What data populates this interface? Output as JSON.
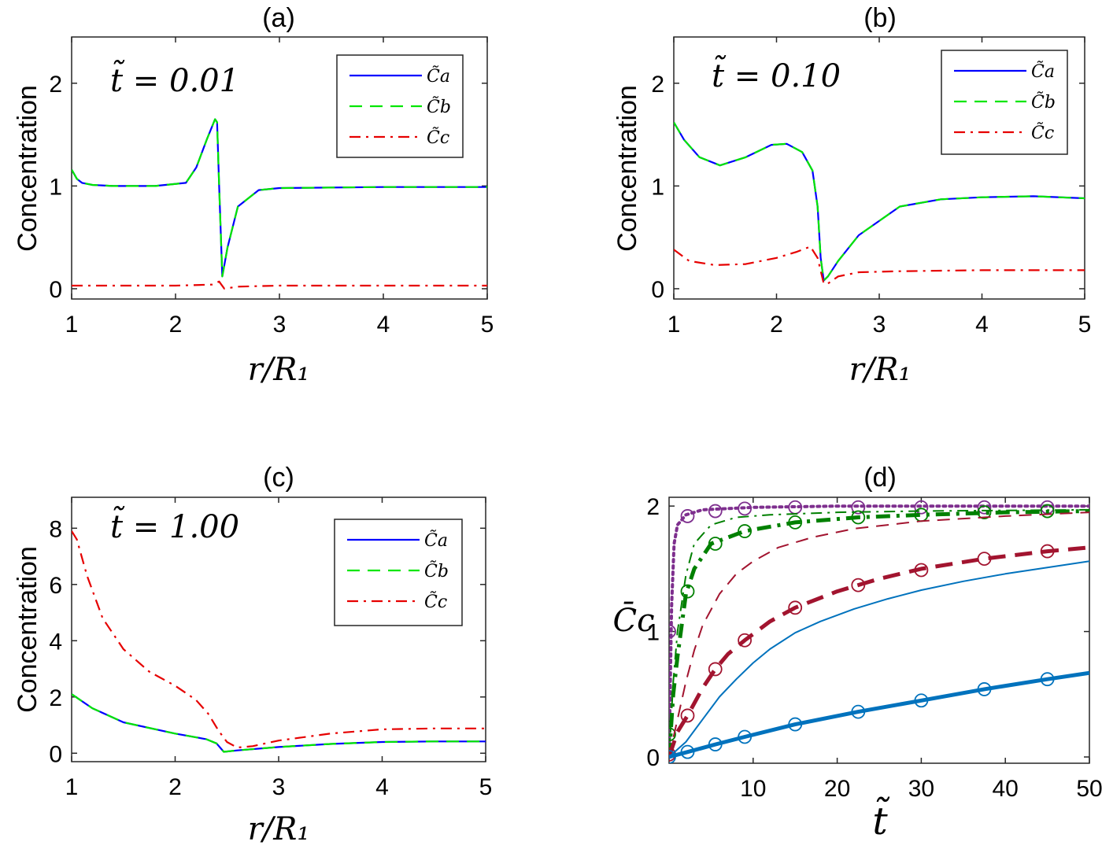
{
  "chart_data": [
    {
      "id": "a",
      "type": "line",
      "title": "(a)",
      "annotation": "t̃ = 0.01",
      "xlabel": "r/R₁",
      "ylabel": "Concentration",
      "xlim": [
        1,
        5
      ],
      "ylim": [
        -0.1,
        2.45
      ],
      "xticks": [
        1,
        2,
        3,
        4,
        5
      ],
      "yticks": [
        0,
        1,
        2
      ],
      "legend_position": "top-right",
      "series": [
        {
          "name": "C̃a",
          "style": "solid",
          "color": "#0000ff",
          "x": [
            1.0,
            1.05,
            1.1,
            1.2,
            1.4,
            1.8,
            2.1,
            2.2,
            2.3,
            2.38,
            2.4,
            2.42,
            2.45,
            2.5,
            2.6,
            2.8,
            3.0,
            4.0,
            5.0
          ],
          "y": [
            1.16,
            1.07,
            1.03,
            1.01,
            1.0,
            1.0,
            1.03,
            1.18,
            1.45,
            1.65,
            1.62,
            1.0,
            0.12,
            0.4,
            0.8,
            0.96,
            0.98,
            0.99,
            0.99
          ]
        },
        {
          "name": "C̃b",
          "style": "dashed",
          "color": "#00e600",
          "x": [
            1.0,
            1.05,
            1.1,
            1.2,
            1.4,
            1.8,
            2.1,
            2.2,
            2.3,
            2.38,
            2.4,
            2.42,
            2.45,
            2.5,
            2.6,
            2.8,
            3.0,
            4.0,
            5.0
          ],
          "y": [
            1.16,
            1.07,
            1.03,
            1.01,
            1.0,
            1.0,
            1.03,
            1.18,
            1.45,
            1.65,
            1.62,
            1.0,
            0.12,
            0.4,
            0.8,
            0.96,
            0.98,
            0.99,
            0.99
          ]
        },
        {
          "name": "C̃c",
          "style": "dashdot",
          "color": "#e60000",
          "x": [
            1.0,
            2.0,
            2.35,
            2.42,
            2.47,
            2.6,
            3.0,
            5.0
          ],
          "y": [
            0.03,
            0.03,
            0.04,
            0.07,
            0.0,
            0.02,
            0.03,
            0.03
          ]
        }
      ]
    },
    {
      "id": "b",
      "type": "line",
      "title": "(b)",
      "annotation": "t̃ = 0.10",
      "xlabel": "r/R₁",
      "ylabel": "Concentration",
      "xlim": [
        1,
        5
      ],
      "ylim": [
        -0.1,
        2.45
      ],
      "xticks": [
        1,
        2,
        3,
        4,
        5
      ],
      "yticks": [
        0,
        1,
        2
      ],
      "legend_position": "top-right",
      "series": [
        {
          "name": "C̃a",
          "style": "solid",
          "color": "#0000ff",
          "x": [
            1.0,
            1.1,
            1.25,
            1.45,
            1.7,
            1.95,
            2.1,
            2.25,
            2.35,
            2.4,
            2.43,
            2.46,
            2.5,
            2.6,
            2.8,
            3.2,
            3.6,
            4.0,
            4.5,
            5.0
          ],
          "y": [
            1.62,
            1.45,
            1.28,
            1.2,
            1.28,
            1.4,
            1.41,
            1.33,
            1.15,
            0.8,
            0.3,
            0.08,
            0.12,
            0.27,
            0.52,
            0.8,
            0.87,
            0.89,
            0.9,
            0.88
          ]
        },
        {
          "name": "C̃b",
          "style": "dashed",
          "color": "#00e600",
          "x": [
            1.0,
            1.1,
            1.25,
            1.45,
            1.7,
            1.95,
            2.1,
            2.25,
            2.35,
            2.4,
            2.43,
            2.46,
            2.5,
            2.6,
            2.8,
            3.2,
            3.6,
            4.0,
            4.5,
            5.0
          ],
          "y": [
            1.62,
            1.45,
            1.28,
            1.2,
            1.28,
            1.4,
            1.41,
            1.33,
            1.15,
            0.8,
            0.3,
            0.08,
            0.12,
            0.27,
            0.52,
            0.8,
            0.87,
            0.89,
            0.9,
            0.88
          ]
        },
        {
          "name": "C̃c",
          "style": "dashdot",
          "color": "#e60000",
          "x": [
            1.0,
            1.15,
            1.4,
            1.7,
            2.0,
            2.2,
            2.33,
            2.4,
            2.46,
            2.5,
            2.6,
            2.8,
            3.2,
            4.0,
            5.0
          ],
          "y": [
            0.38,
            0.27,
            0.23,
            0.24,
            0.3,
            0.36,
            0.41,
            0.3,
            0.05,
            0.05,
            0.12,
            0.16,
            0.17,
            0.18,
            0.18
          ]
        }
      ]
    },
    {
      "id": "c",
      "type": "line",
      "title": "(c)",
      "annotation": "t̃ = 1.00",
      "xlabel": "r/R₁",
      "ylabel": "Concentration",
      "xlim": [
        1,
        5
      ],
      "ylim": [
        -0.3,
        9.1
      ],
      "xticks": [
        1,
        2,
        3,
        4,
        5
      ],
      "yticks": [
        0,
        2,
        4,
        6,
        8
      ],
      "legend_position": "top-right",
      "series": [
        {
          "name": "C̃a",
          "style": "solid",
          "color": "#0000ff",
          "x": [
            1.0,
            1.2,
            1.5,
            2.0,
            2.3,
            2.4,
            2.47,
            2.6,
            3.0,
            3.5,
            4.0,
            4.5,
            5.0
          ],
          "y": [
            2.1,
            1.6,
            1.1,
            0.7,
            0.5,
            0.35,
            0.05,
            0.1,
            0.22,
            0.33,
            0.4,
            0.42,
            0.42
          ]
        },
        {
          "name": "C̃b",
          "style": "dashed",
          "color": "#00e600",
          "x": [
            1.0,
            1.2,
            1.5,
            2.0,
            2.3,
            2.4,
            2.47,
            2.6,
            3.0,
            3.5,
            4.0,
            4.5,
            5.0
          ],
          "y": [
            2.1,
            1.6,
            1.1,
            0.7,
            0.5,
            0.35,
            0.05,
            0.1,
            0.22,
            0.33,
            0.4,
            0.42,
            0.42
          ]
        },
        {
          "name": "C̃c",
          "style": "dashdot",
          "color": "#e60000",
          "x": [
            1.0,
            1.05,
            1.15,
            1.3,
            1.5,
            1.75,
            2.0,
            2.2,
            2.32,
            2.42,
            2.5,
            2.6,
            2.75,
            3.0,
            3.5,
            4.0,
            4.5,
            5.0
          ],
          "y": [
            7.9,
            7.6,
            6.3,
            4.8,
            3.7,
            2.9,
            2.4,
            1.9,
            1.4,
            0.8,
            0.4,
            0.2,
            0.25,
            0.45,
            0.7,
            0.85,
            0.88,
            0.88
          ]
        }
      ]
    },
    {
      "id": "d",
      "type": "line",
      "title": "(d)",
      "xlabel": "t̃",
      "ylabel": "C̄c",
      "xlim": [
        0,
        50
      ],
      "ylim": [
        -0.05,
        2.07
      ],
      "xticks": [
        10,
        20,
        30,
        40,
        50
      ],
      "yticks": [
        0,
        1,
        2
      ],
      "series": [
        {
          "name": "purple dotted",
          "style": "dotted",
          "color": "#7e2f8e",
          "width": 4,
          "x": [
            0,
            0.3,
            0.6,
            1.0,
            2.0,
            4.0,
            10,
            20,
            50
          ],
          "y": [
            0,
            1.2,
            1.7,
            1.85,
            1.93,
            1.97,
            1.99,
            2.0,
            2.0
          ]
        },
        {
          "name": "purple markers",
          "style": "markers",
          "color": "#7e2f8e",
          "x": [
            0,
            2.2,
            5.5,
            9,
            15,
            22.5,
            30,
            37.5,
            45
          ],
          "y": [
            1.0,
            1.92,
            1.96,
            1.98,
            1.99,
            1.99,
            1.99,
            1.99,
            1.99
          ]
        },
        {
          "name": "green thin dash-dot",
          "style": "dashdot",
          "color": "#008000",
          "width": 2,
          "x": [
            0,
            0.5,
            1,
            2,
            3,
            5,
            8,
            12,
            20,
            30,
            50
          ],
          "y": [
            0,
            0.6,
            1.0,
            1.45,
            1.7,
            1.85,
            1.91,
            1.93,
            1.95,
            1.96,
            1.97
          ]
        },
        {
          "name": "green thick dash-dot",
          "style": "dashdot",
          "color": "#008000",
          "width": 5,
          "x": [
            0,
            0.5,
            1,
            2,
            3,
            5,
            9,
            15,
            22.5,
            30,
            40,
            50
          ],
          "y": [
            0,
            0.5,
            0.8,
            1.3,
            1.5,
            1.7,
            1.8,
            1.87,
            1.91,
            1.93,
            1.95,
            1.96
          ]
        },
        {
          "name": "green markers",
          "style": "markers",
          "color": "#008000",
          "x": [
            0,
            2.2,
            5.5,
            9,
            15,
            22.5,
            30,
            37.5,
            45
          ],
          "y": [
            0.18,
            1.32,
            1.7,
            1.8,
            1.87,
            1.91,
            1.93,
            1.95,
            1.96
          ]
        },
        {
          "name": "dark red thin dashed",
          "style": "dashed",
          "color": "#a2142f",
          "width": 2,
          "x": [
            0,
            1,
            2,
            3,
            4,
            6,
            8,
            10,
            13,
            17,
            22,
            30,
            40,
            50
          ],
          "y": [
            0,
            0.3,
            0.6,
            0.85,
            1.05,
            1.3,
            1.46,
            1.56,
            1.67,
            1.75,
            1.82,
            1.88,
            1.92,
            1.95
          ]
        },
        {
          "name": "dark red thick dashed",
          "style": "dashed",
          "color": "#a2142f",
          "width": 5,
          "x": [
            0,
            1,
            2.2,
            4,
            5.5,
            7,
            9,
            12,
            15,
            20,
            25,
            30,
            37.5,
            45,
            50
          ],
          "y": [
            0,
            0.2,
            0.33,
            0.55,
            0.7,
            0.82,
            0.93,
            1.08,
            1.19,
            1.32,
            1.42,
            1.5,
            1.58,
            1.64,
            1.67
          ]
        },
        {
          "name": "dark red markers",
          "style": "markers",
          "color": "#a2142f",
          "x": [
            0,
            2.2,
            5.5,
            9,
            15,
            22.5,
            30,
            37.5,
            45
          ],
          "y": [
            0.02,
            0.33,
            0.7,
            0.93,
            1.19,
            1.37,
            1.49,
            1.58,
            1.64
          ]
        },
        {
          "name": "blue thin solid",
          "style": "solid",
          "color": "#0072bd",
          "width": 2,
          "x": [
            0,
            2,
            4,
            6,
            8,
            10,
            12,
            15,
            18,
            22,
            26,
            30,
            35,
            40,
            45,
            50
          ],
          "y": [
            0,
            0.12,
            0.3,
            0.48,
            0.62,
            0.75,
            0.86,
            0.99,
            1.08,
            1.18,
            1.26,
            1.33,
            1.4,
            1.46,
            1.51,
            1.56
          ]
        },
        {
          "name": "blue thick solid",
          "style": "solid",
          "color": "#0072bd",
          "width": 5,
          "x": [
            0,
            2.2,
            5.5,
            9,
            15,
            22.5,
            30,
            37.5,
            45,
            50
          ],
          "y": [
            0,
            0.04,
            0.1,
            0.16,
            0.26,
            0.36,
            0.45,
            0.54,
            0.62,
            0.67
          ]
        },
        {
          "name": "blue markers",
          "style": "markers",
          "color": "#0072bd",
          "x": [
            0,
            2.2,
            5.5,
            9,
            15,
            22.5,
            30,
            37.5,
            45
          ],
          "y": [
            0.0,
            0.04,
            0.1,
            0.16,
            0.26,
            0.36,
            0.45,
            0.54,
            0.62
          ]
        }
      ]
    }
  ]
}
